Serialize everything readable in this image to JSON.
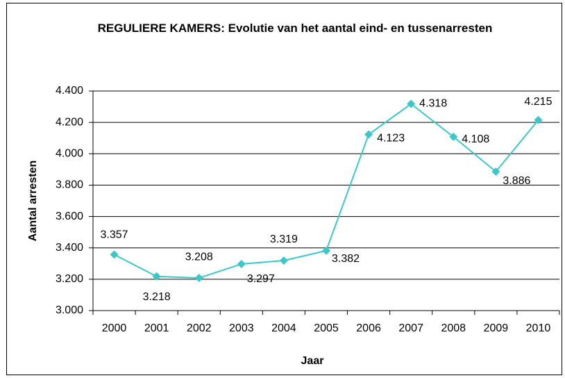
{
  "chart_data": {
    "type": "line",
    "title": "REGULIERE KAMERS: Evolutie van het aantal eind- en tussenarresten",
    "x_label": "Jaar",
    "y_label": "Aantal arresten",
    "categories": [
      "2000",
      "2001",
      "2002",
      "2003",
      "2004",
      "2005",
      "2006",
      "2007",
      "2008",
      "2009",
      "2010"
    ],
    "values": [
      3357,
      3218,
      3208,
      3297,
      3319,
      3382,
      4123,
      4318,
      4108,
      3886,
      4215
    ],
    "value_labels": [
      "3.357",
      "3.218",
      "3.208",
      "3.297",
      "3.319",
      "3.382",
      "4.123",
      "4.318",
      "4.108",
      "3.886",
      "4.215"
    ],
    "color": "#3cc8c8",
    "ylim": [
      3000,
      4400
    ],
    "yticks": [
      {
        "value": 3000,
        "label": "3.000"
      },
      {
        "value": 3200,
        "label": "3.200"
      },
      {
        "value": 3400,
        "label": "3.400"
      },
      {
        "value": 3600,
        "label": "3.600"
      },
      {
        "value": 3800,
        "label": "3.800"
      },
      {
        "value": 4000,
        "label": "4.000"
      },
      {
        "value": 4200,
        "label": "4.200"
      },
      {
        "value": 4400,
        "label": "4.400"
      }
    ],
    "grid": true
  }
}
